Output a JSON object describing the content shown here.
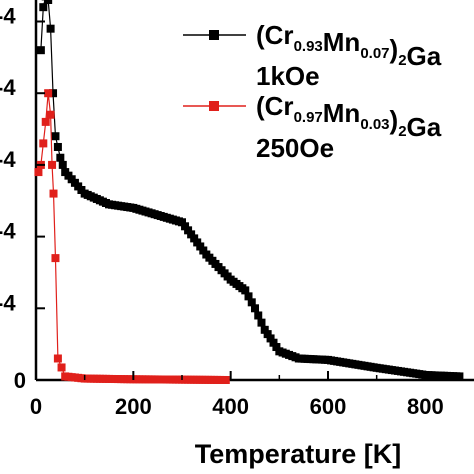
{
  "chart_data": {
    "type": "scatter",
    "xlabel": "Temperature [K]",
    "ylabel": "",
    "xlim": [
      0,
      900
    ],
    "ylim": [
      0,
      5.3
    ],
    "x_ticks": [
      "0",
      "200",
      "400",
      "600",
      "800"
    ],
    "y_tick_labels_visible": [
      "0",
      "-4",
      "-4",
      "-4",
      "-4",
      "-4"
    ],
    "y_tick_values": [
      0,
      1,
      2,
      3,
      4,
      5
    ],
    "grid": false,
    "legend_position": "top-right",
    "series": [
      {
        "name": "(Cr0.93Mn0.07)2Ga",
        "legend_lines": [
          "(Cr",
          "0.93",
          "Mn",
          "0.07",
          ")",
          "2",
          "Ga",
          "1kOe"
        ],
        "color": "#000000",
        "marker": "square",
        "x": [
          10,
          15,
          20,
          25,
          30,
          35,
          40,
          50,
          60,
          80,
          100,
          150,
          200,
          250,
          300,
          350,
          400,
          430,
          450,
          470,
          500,
          520,
          540,
          600,
          700,
          800,
          870
        ],
        "y": [
          4.6,
          5.2,
          5.35,
          5.3,
          4.9,
          4.0,
          3.4,
          3.1,
          2.9,
          2.75,
          2.6,
          2.45,
          2.4,
          2.3,
          2.2,
          1.75,
          1.4,
          1.25,
          1.0,
          0.7,
          0.4,
          0.35,
          0.3,
          0.28,
          0.17,
          0.07,
          0.05
        ]
      },
      {
        "name": "(Cr0.97Mn0.03)2Ga",
        "legend_lines": [
          "(Cr",
          "0.97",
          "Mn",
          "0.03",
          ")",
          "2",
          "Ga",
          "250Oe"
        ],
        "color": "#e0201b",
        "marker": "square",
        "x": [
          5,
          10,
          15,
          20,
          25,
          30,
          33,
          36,
          40,
          45,
          60,
          100,
          200,
          300,
          390
        ],
        "y": [
          2.9,
          3.0,
          3.3,
          3.6,
          4.0,
          3.7,
          3.0,
          2.6,
          1.7,
          0.3,
          0.05,
          0.02,
          0.01,
          0.005,
          0.0
        ]
      }
    ]
  }
}
